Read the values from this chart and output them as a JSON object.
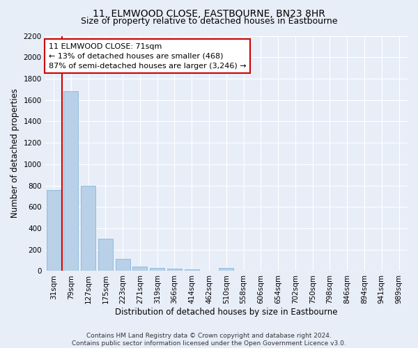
{
  "title": "11, ELMWOOD CLOSE, EASTBOURNE, BN23 8HR",
  "subtitle": "Size of property relative to detached houses in Eastbourne",
  "xlabel": "Distribution of detached houses by size in Eastbourne",
  "ylabel": "Number of detached properties",
  "categories": [
    "31sqm",
    "79sqm",
    "127sqm",
    "175sqm",
    "223sqm",
    "271sqm",
    "319sqm",
    "366sqm",
    "414sqm",
    "462sqm",
    "510sqm",
    "558sqm",
    "606sqm",
    "654sqm",
    "702sqm",
    "750sqm",
    "798sqm",
    "846sqm",
    "894sqm",
    "941sqm",
    "989sqm"
  ],
  "values": [
    760,
    1680,
    800,
    300,
    115,
    40,
    27,
    22,
    15,
    0,
    30,
    0,
    0,
    0,
    0,
    0,
    0,
    0,
    0,
    0,
    0
  ],
  "bar_color": "#b8d0e8",
  "bar_edge_color": "#7aafd4",
  "property_line_color": "#cc0000",
  "annotation_text": "11 ELMWOOD CLOSE: 71sqm\n← 13% of detached houses are smaller (468)\n87% of semi-detached houses are larger (3,246) →",
  "annotation_box_facecolor": "#ffffff",
  "annotation_box_edgecolor": "#cc0000",
  "ylim": [
    0,
    2200
  ],
  "yticks": [
    0,
    200,
    400,
    600,
    800,
    1000,
    1200,
    1400,
    1600,
    1800,
    2000,
    2200
  ],
  "footer_text": "Contains HM Land Registry data © Crown copyright and database right 2024.\nContains public sector information licensed under the Open Government Licence v3.0.",
  "bg_color": "#e8eef8",
  "grid_color": "#ffffff",
  "title_fontsize": 10,
  "subtitle_fontsize": 9,
  "axis_label_fontsize": 8.5,
  "tick_fontsize": 7.5,
  "annotation_fontsize": 8,
  "footer_fontsize": 6.5
}
